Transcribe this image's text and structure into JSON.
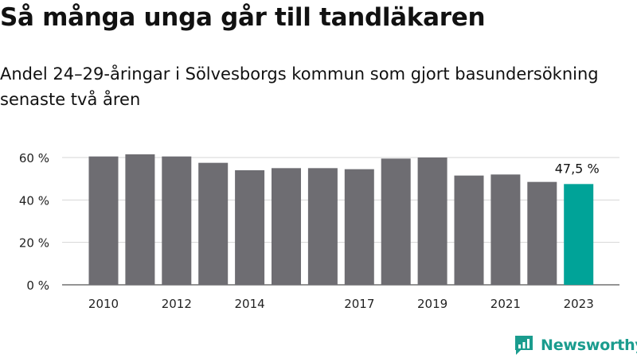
{
  "title": "Så många unga går till tandläkaren",
  "subtitle": "Andel 24–29-åringar i Sölvesborgs kommun som gjort basundersökning senaste två åren",
  "brand": "Newsworthy",
  "colors": {
    "bar": "#6e6d72",
    "highlight": "#00a398",
    "brand": "#1a9c8e"
  },
  "chart_data": {
    "type": "bar",
    "title": "",
    "xlabel": "",
    "ylabel": "",
    "categories": [
      "2010",
      "2011",
      "2012",
      "2013",
      "2014",
      "2015",
      "2016",
      "2017",
      "2018",
      "2019",
      "2020",
      "2021",
      "2022",
      "2023"
    ],
    "values": [
      60.5,
      61.5,
      60.5,
      57.5,
      54,
      55,
      55,
      54.5,
      59.5,
      60,
      51.5,
      52,
      48.5,
      47.5
    ],
    "x_tick_labels": [
      "2010",
      "2012",
      "2014",
      "2017",
      "2019",
      "2021",
      "2023"
    ],
    "y_ticks": [
      0,
      20,
      40,
      60
    ],
    "y_tick_labels": [
      "0 %",
      "20 %",
      "40 %",
      "60 %"
    ],
    "ylim": [
      0,
      60
    ],
    "grid": true,
    "highlight": {
      "category": "2023",
      "label": "47,5 %"
    }
  }
}
